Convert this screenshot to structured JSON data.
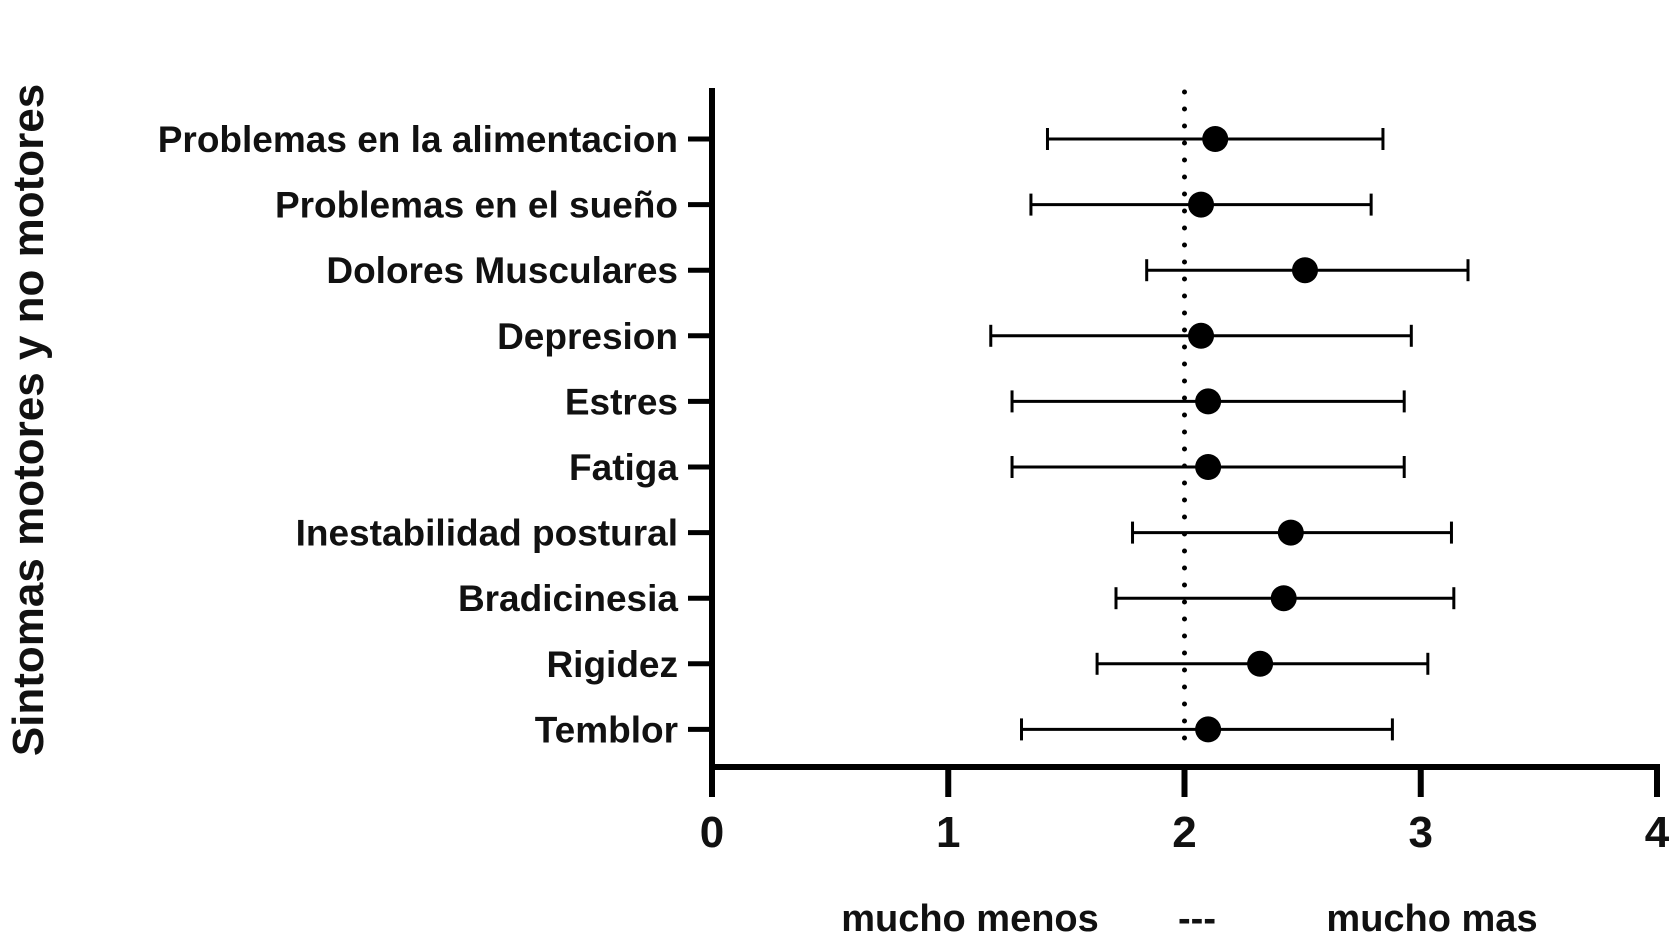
{
  "chart_data": {
    "type": "scatter",
    "orientation": "horizontal",
    "ylabel": "Sintomas motores y no motores",
    "xlabel_left": "mucho menos",
    "xlabel_mid": "---",
    "xlabel_right": "mucho mas",
    "xlim": [
      0,
      4
    ],
    "xticks": [
      "0",
      "1",
      "2",
      "3",
      "4"
    ],
    "reference_line": 2,
    "grid": false,
    "categories": [
      "Problemas en la alimentacion",
      "Problemas en el sueño",
      "Dolores Musculares",
      "Depresion",
      "Estres",
      "Fatiga",
      "Inestabilidad postural",
      "Bradicinesia",
      "Rigidez",
      "Temblor"
    ],
    "series": [
      {
        "values": [
          2.13,
          2.07,
          2.51,
          2.07,
          2.1,
          2.1,
          2.45,
          2.42,
          2.32,
          2.1
        ],
        "lower": [
          1.42,
          1.35,
          1.84,
          1.18,
          1.27,
          1.27,
          1.78,
          1.71,
          1.63,
          1.31
        ],
        "upper": [
          2.84,
          2.79,
          3.2,
          2.96,
          2.93,
          2.93,
          3.13,
          3.14,
          3.03,
          2.88
        ]
      }
    ],
    "colors": {
      "marker": "#000000",
      "axis": "#000000"
    }
  }
}
